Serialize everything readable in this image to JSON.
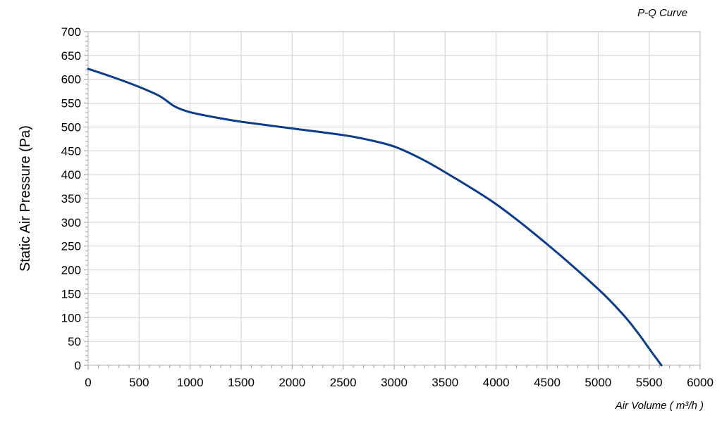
{
  "chart_data": {
    "type": "line",
    "title": "P-Q Curve",
    "xlabel": "Air Volume ( m³/h )",
    "ylabel": "Static Air Pressure  (Pa)",
    "xlim": [
      0,
      6000
    ],
    "ylim": [
      0,
      700
    ],
    "x_ticks": [
      0,
      500,
      1000,
      1500,
      2000,
      2500,
      3000,
      3500,
      4000,
      4500,
      5000,
      5500,
      6000
    ],
    "y_ticks": [
      0,
      50,
      100,
      150,
      200,
      250,
      300,
      350,
      400,
      450,
      500,
      550,
      600,
      650,
      700
    ],
    "grid": true,
    "series": [
      {
        "color": "#0b3d8c",
        "x": [
          0,
          250,
          500,
          700,
          850,
          1000,
          1250,
          1500,
          2000,
          2500,
          2750,
          3000,
          3250,
          3500,
          4000,
          4500,
          5000,
          5250,
          5400,
          5500,
          5620
        ],
        "y": [
          622,
          604,
          584,
          565,
          543,
          531,
          520,
          511,
          497,
          483,
          473,
          459,
          435,
          405,
          338,
          254,
          160,
          105,
          65,
          35,
          0
        ]
      }
    ]
  }
}
